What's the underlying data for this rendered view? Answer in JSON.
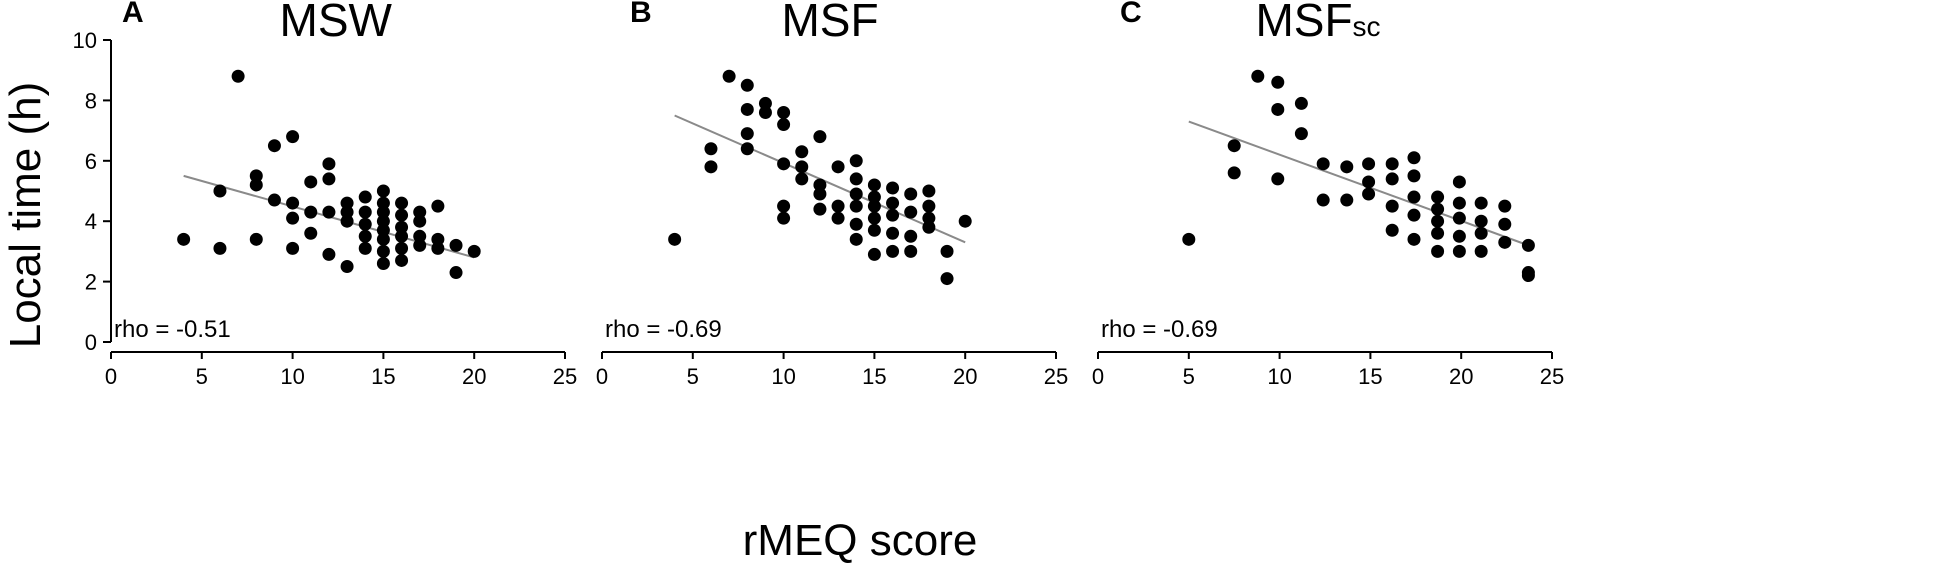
{
  "figure": {
    "ylabel": "Local time (h)",
    "xlabel": "rMEQ score"
  },
  "chart_data": [
    {
      "type": "scatter",
      "letter": "A",
      "title": "MSW",
      "title_sub": "",
      "annotation": "rho = -0.51",
      "xlim": [
        0,
        25
      ],
      "ylim": [
        0,
        10
      ],
      "xticks": [
        "0",
        "5",
        "10",
        "15",
        "20",
        "25"
      ],
      "yticks": [
        "0",
        "2",
        "4",
        "6",
        "8",
        "10"
      ],
      "trend_line": [
        [
          4,
          5.5
        ],
        [
          20,
          2.8
        ]
      ],
      "points": [
        [
          4,
          3.4
        ],
        [
          6,
          5.0
        ],
        [
          6,
          3.1
        ],
        [
          7,
          8.8
        ],
        [
          8,
          5.5
        ],
        [
          8,
          5.2
        ],
        [
          8,
          3.4
        ],
        [
          9,
          6.5
        ],
        [
          9,
          4.7
        ],
        [
          10,
          6.8
        ],
        [
          10,
          4.6
        ],
        [
          10,
          4.1
        ],
        [
          10,
          3.1
        ],
        [
          11,
          5.3
        ],
        [
          11,
          4.3
        ],
        [
          11,
          3.6
        ],
        [
          12,
          5.9
        ],
        [
          12,
          5.4
        ],
        [
          12,
          4.3
        ],
        [
          12,
          2.9
        ],
        [
          13,
          4.6
        ],
        [
          13,
          4.3
        ],
        [
          13,
          4.0
        ],
        [
          13,
          2.5
        ],
        [
          14,
          4.8
        ],
        [
          14,
          4.3
        ],
        [
          14,
          3.9
        ],
        [
          14,
          3.5
        ],
        [
          14,
          3.1
        ],
        [
          15,
          5.0
        ],
        [
          15,
          4.6
        ],
        [
          15,
          4.3
        ],
        [
          15,
          4.0
        ],
        [
          15,
          3.7
        ],
        [
          15,
          3.4
        ],
        [
          15,
          3.0
        ],
        [
          15,
          2.6
        ],
        [
          16,
          4.6
        ],
        [
          16,
          4.2
        ],
        [
          16,
          3.8
        ],
        [
          16,
          3.5
        ],
        [
          16,
          3.1
        ],
        [
          16,
          2.7
        ],
        [
          17,
          4.3
        ],
        [
          17,
          4.0
        ],
        [
          17,
          3.5
        ],
        [
          17,
          3.2
        ],
        [
          18,
          4.5
        ],
        [
          18,
          3.4
        ],
        [
          18,
          3.1
        ],
        [
          19,
          3.2
        ],
        [
          19,
          2.3
        ],
        [
          20,
          3.0
        ]
      ]
    },
    {
      "type": "scatter",
      "letter": "B",
      "title": "MSF",
      "title_sub": "",
      "annotation": "rho = -0.69",
      "xlim": [
        0,
        25
      ],
      "ylim": [
        0,
        10
      ],
      "xticks": [
        "0",
        "5",
        "10",
        "15",
        "20",
        "25"
      ],
      "yticks": [
        "0",
        "2",
        "4",
        "6",
        "8",
        "10"
      ],
      "trend_line": [
        [
          4,
          7.5
        ],
        [
          20,
          3.3
        ]
      ],
      "points": [
        [
          4,
          3.4
        ],
        [
          6,
          6.4
        ],
        [
          6,
          5.8
        ],
        [
          7,
          8.8
        ],
        [
          8,
          8.5
        ],
        [
          8,
          7.7
        ],
        [
          8,
          6.9
        ],
        [
          8,
          6.4
        ],
        [
          9,
          7.9
        ],
        [
          9,
          7.6
        ],
        [
          10,
          7.6
        ],
        [
          10,
          7.2
        ],
        [
          10,
          5.9
        ],
        [
          10,
          4.5
        ],
        [
          10,
          4.1
        ],
        [
          11,
          6.3
        ],
        [
          11,
          5.8
        ],
        [
          11,
          5.4
        ],
        [
          12,
          6.8
        ],
        [
          12,
          5.2
        ],
        [
          12,
          4.9
        ],
        [
          12,
          4.4
        ],
        [
          13,
          5.8
        ],
        [
          13,
          4.5
        ],
        [
          13,
          4.1
        ],
        [
          14,
          6.0
        ],
        [
          14,
          5.4
        ],
        [
          14,
          4.9
        ],
        [
          14,
          4.5
        ],
        [
          14,
          3.9
        ],
        [
          14,
          3.4
        ],
        [
          15,
          5.2
        ],
        [
          15,
          4.8
        ],
        [
          15,
          4.5
        ],
        [
          15,
          4.1
        ],
        [
          15,
          3.7
        ],
        [
          15,
          2.9
        ],
        [
          16,
          5.1
        ],
        [
          16,
          4.6
        ],
        [
          16,
          4.2
        ],
        [
          16,
          3.6
        ],
        [
          16,
          3.0
        ],
        [
          17,
          4.9
        ],
        [
          17,
          4.3
        ],
        [
          17,
          3.5
        ],
        [
          17,
          3.0
        ],
        [
          18,
          5.0
        ],
        [
          18,
          4.5
        ],
        [
          18,
          4.1
        ],
        [
          18,
          3.8
        ],
        [
          19,
          3.0
        ],
        [
          19,
          2.1
        ],
        [
          20,
          4.0
        ]
      ]
    },
    {
      "type": "scatter",
      "letter": "C",
      "title": "MSF",
      "title_sub": "sc",
      "annotation": "rho = -0.69",
      "xlim": [
        0,
        25
      ],
      "ylim": [
        0,
        10
      ],
      "xticks": [
        "0",
        "5",
        "10",
        "15",
        "20",
        "25"
      ],
      "yticks": [
        "0",
        "2",
        "4",
        "6",
        "8",
        "10"
      ],
      "trend_line": [
        [
          5,
          7.3
        ],
        [
          23.7,
          3.2
        ]
      ],
      "points": [
        [
          5,
          3.4
        ],
        [
          7.5,
          6.5
        ],
        [
          7.5,
          5.6
        ],
        [
          8.8,
          8.8
        ],
        [
          9.9,
          8.6
        ],
        [
          9.9,
          7.7
        ],
        [
          9.9,
          5.4
        ],
        [
          11.2,
          7.9
        ],
        [
          11.2,
          6.9
        ],
        [
          12.4,
          5.9
        ],
        [
          12.4,
          4.7
        ],
        [
          13.7,
          5.8
        ],
        [
          13.7,
          4.7
        ],
        [
          14.9,
          5.9
        ],
        [
          14.9,
          5.3
        ],
        [
          14.9,
          4.9
        ],
        [
          16.2,
          5.9
        ],
        [
          16.2,
          5.4
        ],
        [
          16.2,
          4.5
        ],
        [
          16.2,
          3.7
        ],
        [
          17.4,
          6.1
        ],
        [
          17.4,
          5.5
        ],
        [
          17.4,
          4.8
        ],
        [
          17.4,
          4.2
        ],
        [
          17.4,
          3.4
        ],
        [
          18.7,
          4.8
        ],
        [
          18.7,
          4.4
        ],
        [
          18.7,
          4.0
        ],
        [
          18.7,
          3.6
        ],
        [
          18.7,
          3.0
        ],
        [
          19.9,
          5.3
        ],
        [
          19.9,
          4.6
        ],
        [
          19.9,
          4.1
        ],
        [
          19.9,
          3.5
        ],
        [
          19.9,
          3.0
        ],
        [
          21.1,
          4.6
        ],
        [
          21.1,
          4.0
        ],
        [
          21.1,
          3.6
        ],
        [
          21.1,
          3.0
        ],
        [
          22.4,
          4.5
        ],
        [
          22.4,
          3.9
        ],
        [
          22.4,
          3.3
        ],
        [
          23.7,
          3.2
        ],
        [
          23.7,
          2.3
        ],
        [
          23.7,
          2.2
        ]
      ]
    }
  ]
}
